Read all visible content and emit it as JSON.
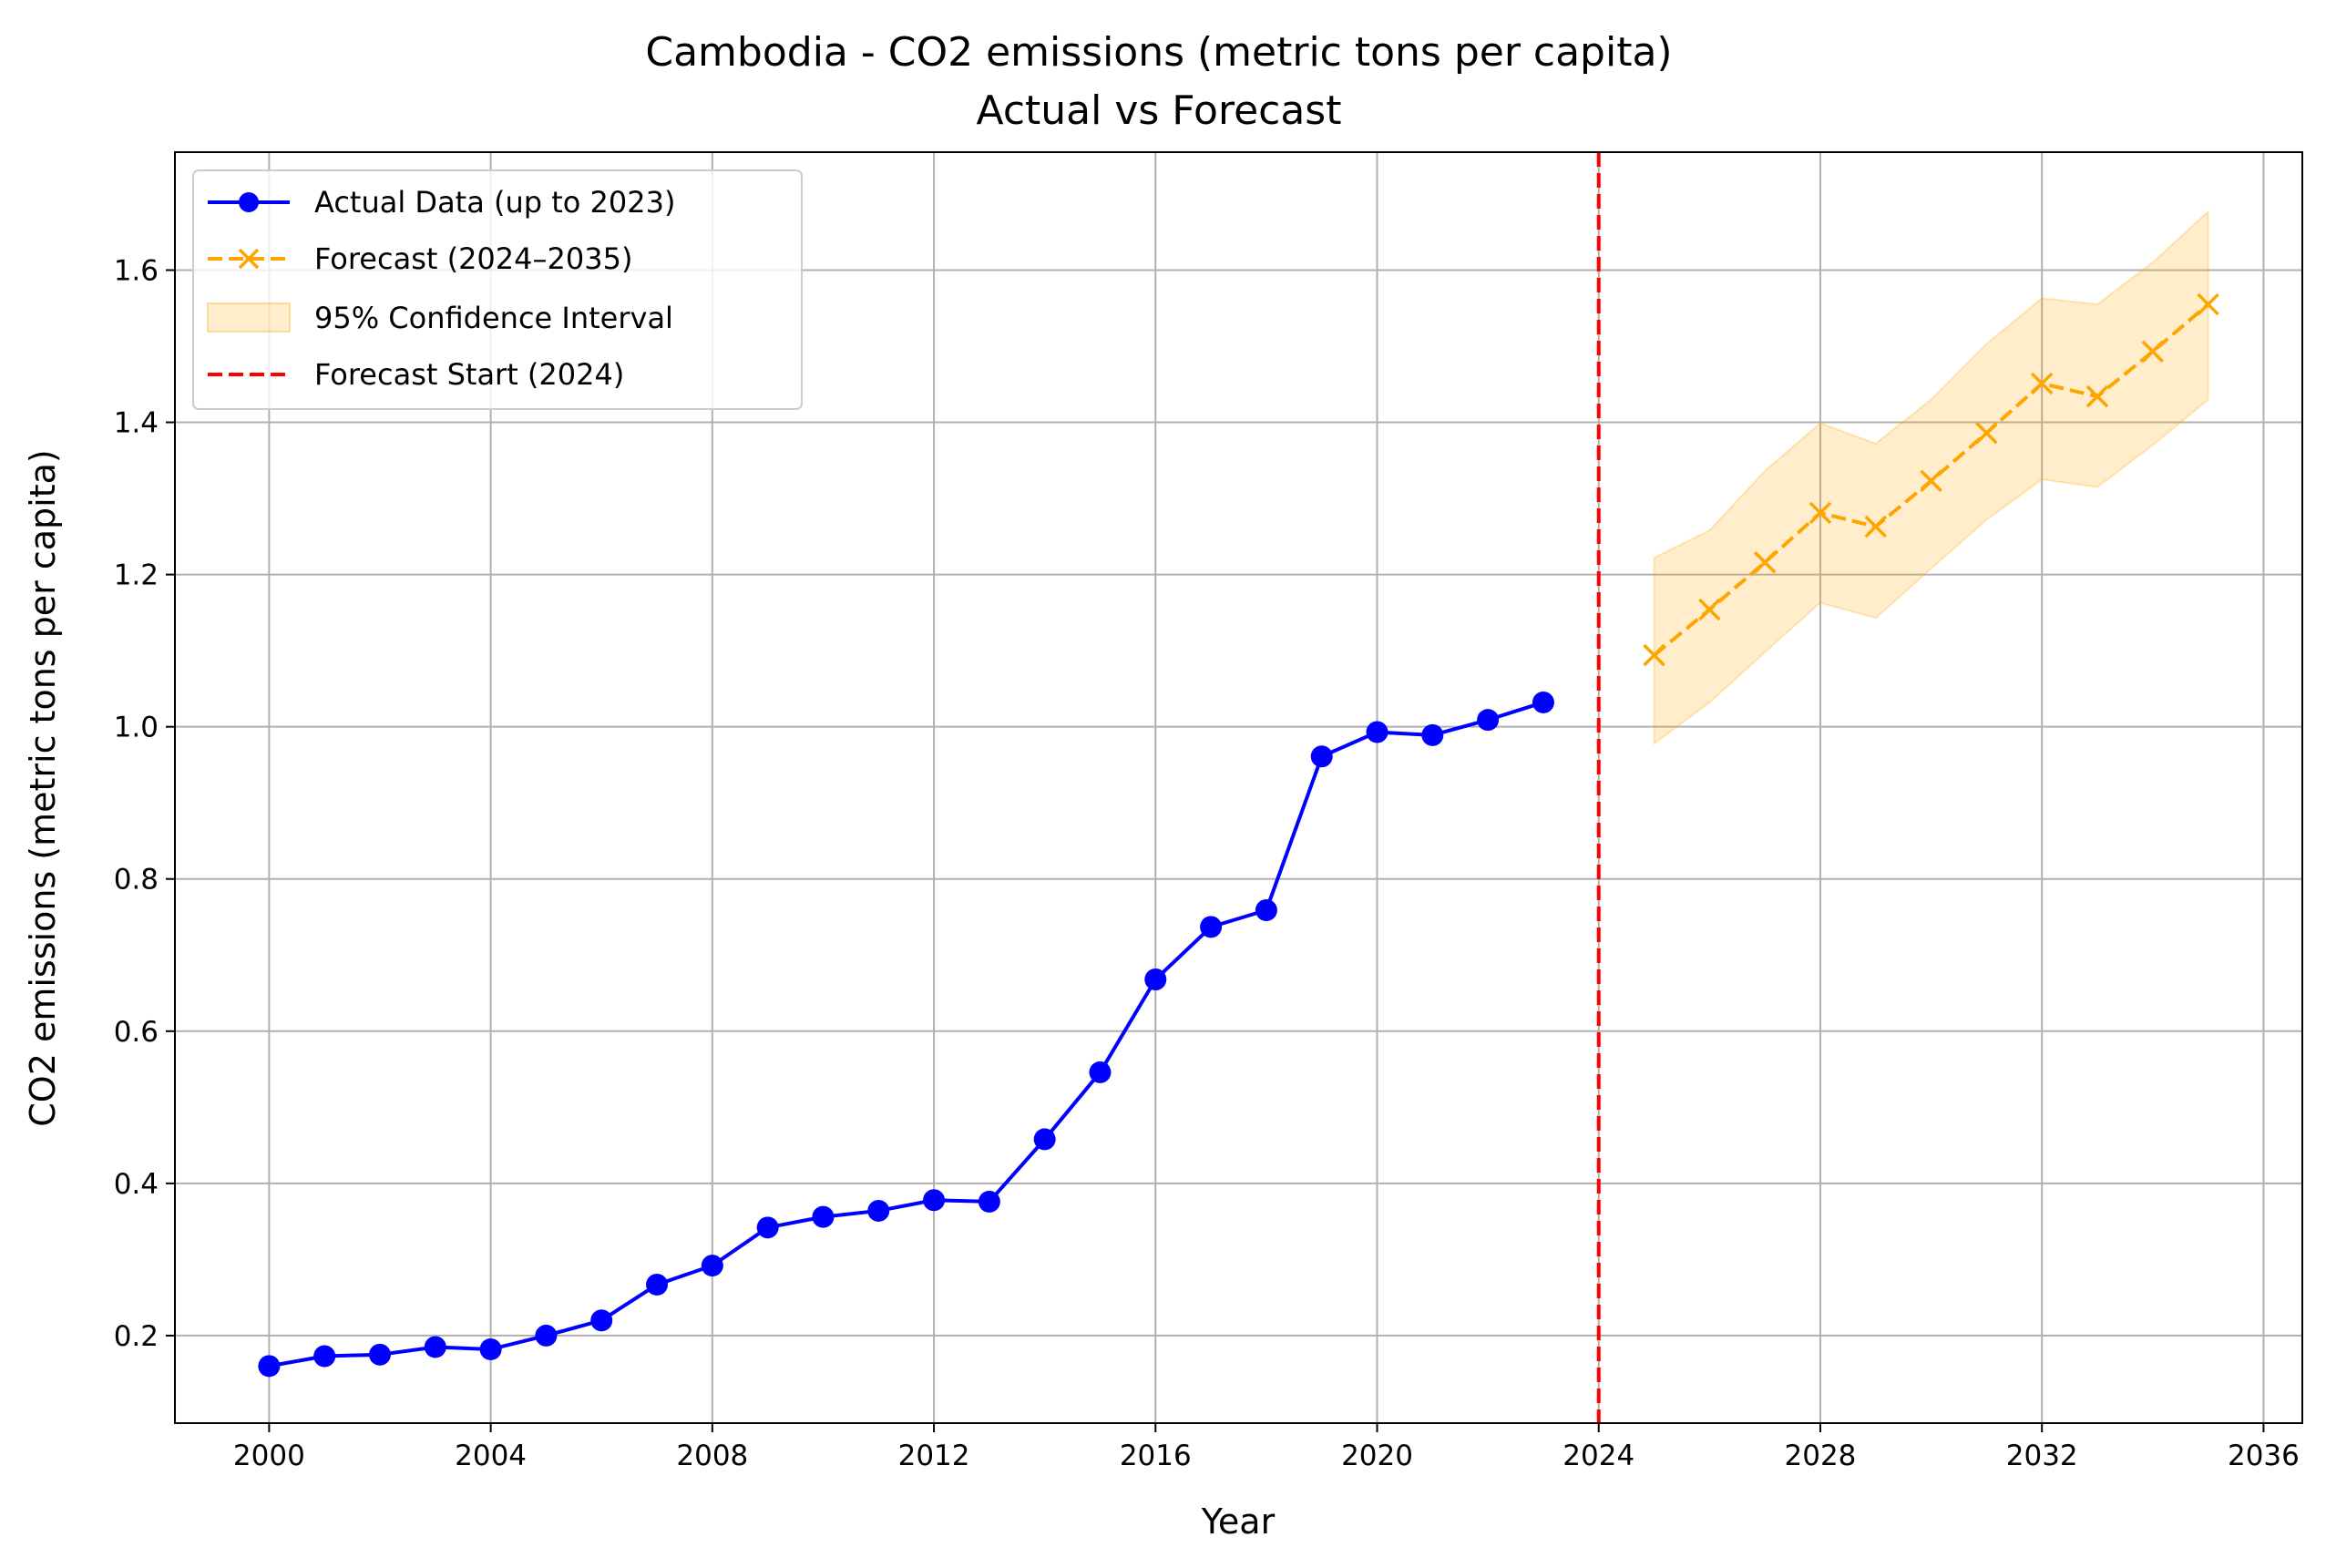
{
  "chart_data": {
    "type": "line",
    "title": "Cambodia - CO2 emissions (metric tons per capita)",
    "subtitle": "Actual vs Forecast",
    "xlabel": "Year",
    "ylabel": "CO2 emissions (metric tons per capita)",
    "xlim": [
      1998.3,
      2036.7
    ],
    "ylim": [
      0.085,
      1.755
    ],
    "xticks": [
      2000,
      2004,
      2008,
      2012,
      2016,
      2020,
      2024,
      2028,
      2032,
      2036
    ],
    "yticks": [
      0.2,
      0.4,
      0.6,
      0.8,
      1.0,
      1.2,
      1.4,
      1.6
    ],
    "ytick_labels": [
      "0.2",
      "0.4",
      "0.6",
      "0.8",
      "1.0",
      "1.2",
      "1.4",
      "1.6"
    ],
    "grid": true,
    "legend_position": "top-left",
    "series": [
      {
        "name": "Actual Data (up to 2023)",
        "style": "solid",
        "marker": "circle",
        "color": "#0000ff",
        "x": [
          2000,
          2001,
          2002,
          2003,
          2004,
          2005,
          2006,
          2007,
          2008,
          2009,
          2010,
          2011,
          2012,
          2013,
          2014,
          2015,
          2016,
          2017,
          2018,
          2019,
          2020,
          2021,
          2022,
          2023
        ],
        "y": [
          0.16,
          0.173,
          0.175,
          0.185,
          0.182,
          0.2,
          0.22,
          0.267,
          0.292,
          0.342,
          0.356,
          0.364,
          0.378,
          0.376,
          0.458,
          0.546,
          0.668,
          0.737,
          0.759,
          0.961,
          0.993,
          0.989,
          1.009,
          1.032
        ]
      },
      {
        "name": "Forecast (2024–2035)",
        "style": "dashed",
        "marker": "x",
        "color": "#ffa500",
        "x": [
          2025,
          2026,
          2027,
          2028,
          2029,
          2030,
          2031,
          2032,
          2033,
          2034,
          2035
        ],
        "y": [
          1.094,
          1.154,
          1.216,
          1.281,
          1.263,
          1.323,
          1.386,
          1.451,
          1.434,
          1.493,
          1.555
        ]
      }
    ],
    "confidence_interval": {
      "name": "95% Confidence Interval",
      "color": "#ffa500",
      "x": [
        2025,
        2026,
        2027,
        2028,
        2029,
        2030,
        2031,
        2032,
        2033,
        2034,
        2035
      ],
      "lower": [
        0.978,
        1.032,
        1.098,
        1.163,
        1.143,
        1.208,
        1.272,
        1.325,
        1.315,
        1.37,
        1.43
      ],
      "upper": [
        1.222,
        1.258,
        1.336,
        1.399,
        1.372,
        1.43,
        1.503,
        1.563,
        1.555,
        1.61,
        1.677
      ]
    },
    "vline": {
      "name": "Forecast Start (2024)",
      "x": 2024,
      "style": "dashed",
      "color": "#ff0000"
    }
  }
}
